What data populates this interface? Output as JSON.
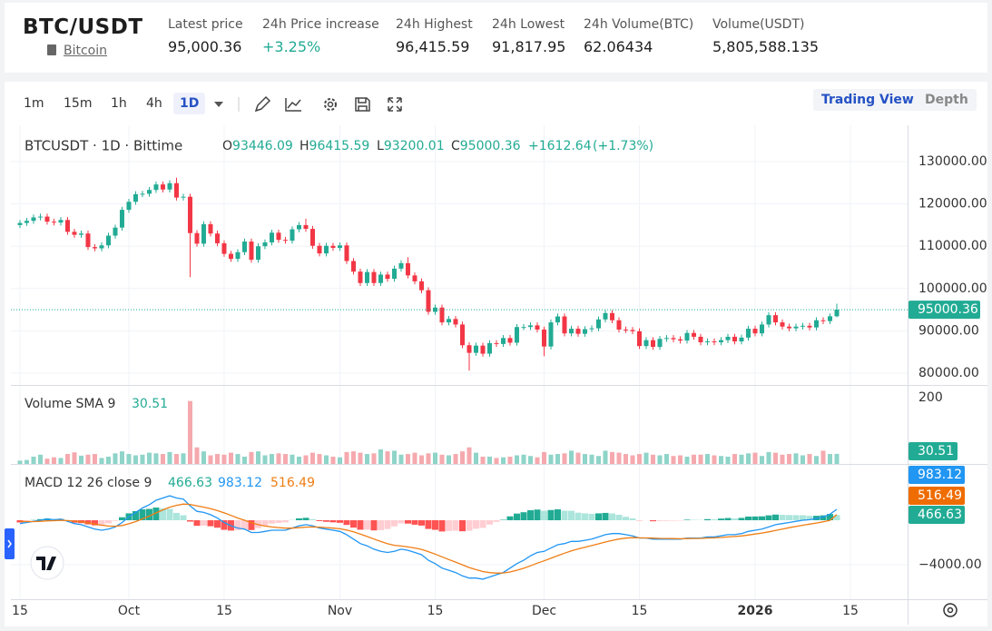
{
  "header": {
    "symbol": "BTC/USDT",
    "name": "Bitcoin",
    "stats": [
      {
        "label": "Latest price",
        "value": "95,000.36"
      },
      {
        "label": "24h Price increase",
        "value": "+3.25%"
      },
      {
        "label": "24h Highest",
        "value": "96,415.59"
      },
      {
        "label": "24h Lowest",
        "value": "91,817.95"
      },
      {
        "label": "24h Volume(BTC)",
        "value": "62.06434"
      },
      {
        "label": "Volume(USDT)",
        "value": "5,805,588.135"
      }
    ]
  },
  "toolbar": {
    "intervals": [
      "1m",
      "15m",
      "1h",
      "4h",
      "1D"
    ],
    "views": [
      "Trading View",
      "Depth"
    ]
  },
  "chart_data": {
    "type": "candlestick",
    "title": "BTCUSDT · 1D · Bittime",
    "legend_labels": [
      "O",
      "H",
      "L",
      "C"
    ],
    "change": "+1612.64",
    "change_percent": "(+1.73%)",
    "up_color": "#22ab94",
    "down_color": "#f23645",
    "xlim": [
      -1.33,
      130.4
    ],
    "xticks": [
      {
        "value": 0,
        "label": "15"
      },
      {
        "value": 16,
        "label": "Oct"
      },
      {
        "value": 30,
        "label": "15"
      },
      {
        "value": 47,
        "label": "Nov"
      },
      {
        "value": 61,
        "label": "15"
      },
      {
        "value": 77,
        "label": "Dec"
      },
      {
        "value": 91,
        "label": "15"
      },
      {
        "value": 108,
        "label": "2026"
      },
      {
        "value": 122,
        "label": "15"
      }
    ],
    "ylim": [
      77210,
      138580
    ],
    "yticks": [
      {
        "value": 80000,
        "label": "80000.00"
      },
      {
        "value": 90000,
        "label": "90000.00"
      },
      {
        "value": 100000,
        "label": "100000.00"
      },
      {
        "value": 110000,
        "label": "110000.00"
      },
      {
        "value": 120000,
        "label": "120000.00"
      },
      {
        "value": 130000,
        "label": "130000.00"
      }
    ],
    "candles": {
      "open": [
        115000,
        115500,
        116000,
        116800,
        117000,
        115800,
        115600,
        116200,
        113400,
        112700,
        113000,
        109800,
        109500,
        110200,
        112500,
        114400,
        118600,
        120500,
        122300,
        122400,
        123300,
        124600,
        123400,
        124900,
        121500,
        121700,
        113100,
        110600,
        115200,
        113000,
        110700,
        108200,
        107000,
        108600,
        111100,
        106800,
        110000,
        110900,
        113200,
        111500,
        111300,
        114000,
        115000,
        114100,
        110100,
        108300,
        110100,
        109600,
        110200,
        106500,
        104000,
        101300,
        103900,
        101300,
        103300,
        102300,
        104700,
        106000,
        103100,
        101700,
        99600,
        94500,
        95500,
        92000,
        92800,
        91500,
        86600,
        84800,
        86500,
        84600,
        87100,
        86900,
        88300,
        87200,
        90900,
        90900,
        91300,
        90300,
        86300,
        92000,
        93400,
        89400,
        90500,
        89300,
        90400,
        90600,
        92700,
        94200,
        92500,
        90300,
        90200,
        89900,
        86400,
        87800,
        86200,
        88100,
        88300,
        88000,
        87700,
        89500,
        88600,
        87300,
        87500,
        87300,
        87800,
        88600,
        87500,
        88400,
        90500,
        89400,
        91500,
        93700,
        92000,
        91000,
        90600,
        91000,
        91200,
        90800,
        92500,
        92300,
        93446.09
      ],
      "high": [
        116200,
        116700,
        117500,
        117700,
        117700,
        116500,
        116900,
        116900,
        114100,
        113700,
        113700,
        110500,
        110900,
        113200,
        115100,
        119300,
        121200,
        123000,
        123100,
        124000,
        125300,
        125300,
        125600,
        126200,
        122400,
        122400,
        113800,
        115900,
        115900,
        113700,
        111400,
        108900,
        109300,
        111800,
        111800,
        110700,
        111600,
        113900,
        113900,
        112200,
        114700,
        115700,
        116500,
        114800,
        110800,
        110800,
        110800,
        110900,
        110900,
        107200,
        104700,
        104600,
        104600,
        104000,
        104000,
        105400,
        106700,
        107400,
        103800,
        102400,
        100300,
        96200,
        96200,
        93500,
        93500,
        92200,
        87300,
        87200,
        87200,
        87800,
        87800,
        89000,
        89000,
        91600,
        91600,
        92000,
        92000,
        91000,
        92700,
        94100,
        94100,
        91200,
        91200,
        91100,
        91300,
        93400,
        94900,
        94900,
        93200,
        91000,
        90900,
        90600,
        88500,
        88500,
        88800,
        89000,
        89000,
        88700,
        90200,
        90200,
        89300,
        88200,
        88200,
        88500,
        89300,
        89300,
        89100,
        91200,
        91200,
        92200,
        94400,
        94400,
        92700,
        91700,
        91700,
        91900,
        91900,
        93200,
        93200,
        94100,
        96415.59
      ],
      "low": [
        114300,
        114800,
        115300,
        116100,
        115100,
        114900,
        114900,
        112700,
        112000,
        112000,
        109100,
        108800,
        108800,
        109500,
        111800,
        113700,
        117900,
        119800,
        121600,
        121700,
        122600,
        122700,
        122700,
        120800,
        120800,
        102700,
        109900,
        109900,
        112300,
        110000,
        107500,
        106300,
        106300,
        107900,
        106100,
        106100,
        109300,
        110200,
        110800,
        110600,
        110600,
        113300,
        113400,
        109400,
        107600,
        107600,
        108900,
        108900,
        105800,
        103300,
        100600,
        100600,
        100600,
        100600,
        101600,
        101600,
        104000,
        102400,
        101000,
        98900,
        93800,
        93800,
        91300,
        91300,
        90800,
        85900,
        80600,
        84100,
        83900,
        83900,
        86200,
        86200,
        86500,
        86500,
        90200,
        90200,
        89600,
        84000,
        85600,
        91300,
        88700,
        88700,
        88600,
        88600,
        89700,
        89900,
        92000,
        91800,
        89600,
        89500,
        89200,
        85700,
        85700,
        85500,
        85500,
        87400,
        87300,
        87000,
        87000,
        87900,
        86600,
        86600,
        86600,
        86600,
        87100,
        86800,
        86800,
        87700,
        88700,
        88700,
        90800,
        91300,
        90300,
        89900,
        89900,
        90300,
        90100,
        90100,
        91600,
        91600,
        93200.01
      ],
      "close": [
        115500,
        116000,
        116800,
        117000,
        115800,
        115600,
        116200,
        113400,
        112700,
        113000,
        109800,
        109500,
        110200,
        112500,
        114400,
        118600,
        120500,
        122300,
        122400,
        123300,
        124600,
        123400,
        124900,
        121500,
        121700,
        113100,
        110600,
        115200,
        113000,
        110700,
        108200,
        107000,
        108600,
        111100,
        106800,
        110000,
        110900,
        113200,
        111500,
        111300,
        114000,
        115000,
        114100,
        110100,
        108300,
        110100,
        109600,
        110200,
        106500,
        104000,
        101300,
        103900,
        101300,
        103300,
        102300,
        104700,
        106000,
        103100,
        101700,
        99600,
        94500,
        95500,
        92000,
        92800,
        91500,
        86600,
        84800,
        86500,
        84600,
        87100,
        86900,
        88300,
        87200,
        90900,
        90900,
        91300,
        90300,
        86300,
        92000,
        93400,
        89400,
        90500,
        89300,
        90400,
        90600,
        92700,
        94200,
        92500,
        90300,
        90200,
        89900,
        86400,
        87800,
        86200,
        88100,
        88300,
        88000,
        87700,
        89500,
        88600,
        87300,
        87500,
        87300,
        87800,
        88600,
        87500,
        88400,
        90500,
        89400,
        91500,
        93700,
        92000,
        91000,
        90600,
        91000,
        91200,
        90800,
        92500,
        92300,
        93446.09,
        95000.36
      ]
    },
    "volume": {
      "title": "Volume SMA 9",
      "up_color": "#8ed4c8",
      "down_color": "#f5a9ae",
      "ylim": [
        0,
        233
      ],
      "yticks": [
        200
      ],
      "values": [
        10,
        12,
        22,
        28,
        16,
        20,
        18,
        30,
        35,
        25,
        28,
        30,
        18,
        22,
        32,
        38,
        30,
        26,
        28,
        34,
        32,
        30,
        36,
        30,
        32,
        190,
        50,
        38,
        26,
        30,
        28,
        34,
        30,
        22,
        36,
        38,
        26,
        30,
        32,
        30,
        28,
        22,
        26,
        34,
        30,
        26,
        22,
        20,
        36,
        38,
        34,
        30,
        32,
        44,
        38,
        40,
        28,
        30,
        34,
        26,
        32,
        34,
        28,
        26,
        30,
        38,
        50,
        34,
        22,
        22,
        18,
        20,
        22,
        26,
        28,
        24,
        20,
        36,
        28,
        30,
        32,
        40,
        34,
        30,
        28,
        24,
        40,
        36,
        34,
        30,
        26,
        30,
        34,
        28,
        26,
        30,
        24,
        26,
        22,
        28,
        28,
        30,
        26,
        24,
        22,
        30,
        28,
        32,
        34,
        24,
        36,
        34,
        28,
        30,
        32,
        26,
        30,
        24,
        40,
        30,
        30.51
      ]
    },
    "macd": {
      "title": "MACD 12 26 close 9",
      "dif_color": "#2196f3",
      "dea_color": "#ef7d14",
      "histogram_colors": [
        "#22ab94",
        "#ace5dc",
        "#ff5252",
        "#ffcdd2"
      ],
      "ylim": [
        -7100,
        4980
      ],
      "yticks": [
        {
          "value": -4000,
          "label": "−4000.00"
        }
      ],
      "histogram": [
        -200,
        -80,
        20,
        100,
        160,
        90,
        110,
        -70,
        -220,
        -260,
        -370,
        -460,
        -450,
        -280,
        -60,
        270,
        620,
        820,
        980,
        1020,
        1140,
        1070,
        1020,
        660,
        450,
        -120,
        -500,
        -480,
        -540,
        -670,
        -860,
        -930,
        -900,
        -800,
        -880,
        -700,
        -480,
        -300,
        -240,
        -190,
        10,
        170,
        220,
        100,
        -80,
        -140,
        -190,
        -230,
        -420,
        -660,
        -850,
        -840,
        -910,
        -890,
        -790,
        -550,
        -280,
        -300,
        -400,
        -480,
        -780,
        -860,
        -1010,
        -970,
        -940,
        -990,
        -950,
        -760,
        -690,
        -390,
        -150,
        40,
        350,
        600,
        720,
        900,
        960,
        850,
        920,
        980,
        860,
        850,
        680,
        620,
        580,
        620,
        660,
        610,
        490,
        310,
        170,
        -20,
        -10,
        -90,
        -70,
        -60,
        -50,
        -40,
        50,
        40,
        30,
        100,
        80,
        150,
        200,
        160,
        210,
        330,
        340,
        350,
        440,
        510,
        490,
        470,
        460,
        450,
        400,
        400,
        440,
        560,
        466.63
      ],
      "dif": [
        -300,
        -200,
        -100,
        0,
        100,
        50,
        100,
        -100,
        -300,
        -400,
        -600,
        -800,
        -900,
        -800,
        -600,
        -200,
        300,
        700,
        1100,
        1400,
        1800,
        2000,
        2200,
        2000,
        1900,
        1300,
        800,
        700,
        500,
        200,
        -200,
        -500,
        -700,
        -800,
        -1100,
        -1100,
        -1000,
        -900,
        -900,
        -900,
        -700,
        -500,
        -400,
        -500,
        -700,
        -800,
        -900,
        -1000,
        -1300,
        -1700,
        -2100,
        -2300,
        -2600,
        -2800,
        -2900,
        -2800,
        -2600,
        -2700,
        -2900,
        -3100,
        -3600,
        -3900,
        -4300,
        -4500,
        -4700,
        -5000,
        -5200,
        -5200,
        -5300,
        -5100,
        -4900,
        -4700,
        -4300,
        -3900,
        -3600,
        -3200,
        -2900,
        -2800,
        -2500,
        -2200,
        -2100,
        -1900,
        -1900,
        -1800,
        -1700,
        -1500,
        -1300,
        -1200,
        -1200,
        -1300,
        -1400,
        -1600,
        -1600,
        -1700,
        -1700,
        -1700,
        -1700,
        -1700,
        -1600,
        -1600,
        -1600,
        -1500,
        -1500,
        -1400,
        -1300,
        -1300,
        -1200,
        -1000,
        -900,
        -800,
        -600,
        -400,
        -300,
        -200,
        -100,
        0,
        50,
        150,
        300,
        550,
        983.12
      ],
      "dea": [
        -100,
        -120,
        -120,
        -100,
        -60,
        -40,
        -10,
        -30,
        -80,
        -140,
        -230,
        -340,
        -450,
        -520,
        -540,
        -470,
        -320,
        -120,
        120,
        380,
        660,
        930,
        1180,
        1340,
        1450,
        1420,
        1300,
        1180,
        1040,
        870,
        660,
        430,
        200,
        0,
        -220,
        -400,
        -520,
        -600,
        -660,
        -710,
        -710,
        -670,
        -620,
        -600,
        -620,
        -660,
        -710,
        -770,
        -880,
        -1040,
        -1250,
        -1460,
        -1690,
        -1910,
        -2110,
        -2250,
        -2320,
        -2400,
        -2500,
        -2620,
        -2820,
        -3040,
        -3290,
        -3530,
        -3760,
        -4010,
        -4250,
        -4440,
        -4610,
        -4710,
        -4750,
        -4740,
        -4650,
        -4500,
        -4320,
        -4100,
        -3860,
        -3650,
        -3420,
        -3180,
        -2960,
        -2750,
        -2580,
        -2420,
        -2280,
        -2120,
        -1960,
        -1810,
        -1690,
        -1610,
        -1570,
        -1580,
        -1590,
        -1610,
        -1630,
        -1640,
        -1650,
        -1660,
        -1650,
        -1640,
        -1630,
        -1600,
        -1580,
        -1550,
        -1500,
        -1460,
        -1410,
        -1330,
        -1240,
        -1150,
        -1040,
        -910,
        -790,
        -670,
        -560,
        -450,
        -350,
        -250,
        -140,
        -10,
        516.49
      ]
    }
  }
}
